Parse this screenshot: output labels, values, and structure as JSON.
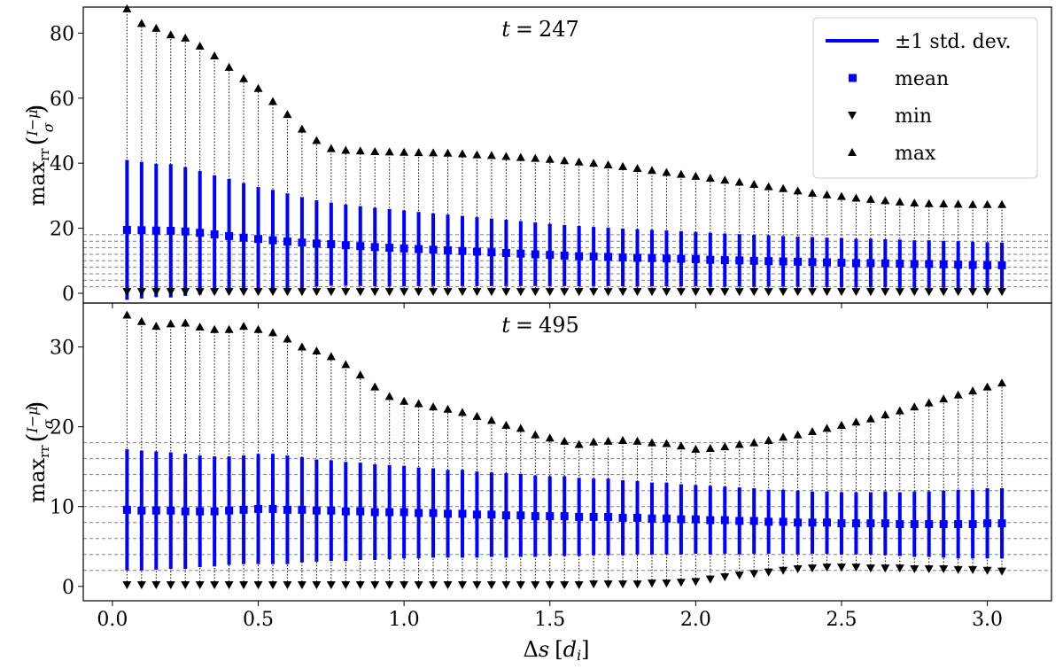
{
  "chart_data": [
    {
      "type": "errorbar",
      "panel": "top",
      "title": "t = 247",
      "title_var": "t",
      "title_value": "247",
      "xlabel": "Δs [d_i]",
      "ylabel": "max_rr((I−μ)/σ)",
      "xlim": [
        -0.1,
        3.22
      ],
      "ylim": [
        -3,
        88
      ],
      "xticks": [
        "0.0",
        "0.5",
        "1.0",
        "1.5",
        "2.0",
        "2.5",
        "3.0"
      ],
      "yticks": [
        "0",
        "20",
        "40",
        "60",
        "80"
      ],
      "hlines": [
        2,
        4,
        6,
        8,
        10,
        12,
        14,
        16,
        18
      ],
      "x": [
        0.05,
        0.1,
        0.15,
        0.2,
        0.25,
        0.3,
        0.35,
        0.4,
        0.45,
        0.5,
        0.55,
        0.6,
        0.65,
        0.7,
        0.75,
        0.8,
        0.85,
        0.9,
        0.95,
        1.0,
        1.05,
        1.1,
        1.15,
        1.2,
        1.25,
        1.3,
        1.35,
        1.4,
        1.45,
        1.5,
        1.55,
        1.6,
        1.65,
        1.7,
        1.75,
        1.8,
        1.85,
        1.9,
        1.95,
        2.0,
        2.05,
        2.1,
        2.15,
        2.2,
        2.25,
        2.3,
        2.35,
        2.4,
        2.45,
        2.5,
        2.55,
        2.6,
        2.65,
        2.7,
        2.75,
        2.8,
        2.85,
        2.9,
        2.95,
        3.0,
        3.05
      ],
      "mean": [
        19.5,
        19.4,
        19.3,
        19.2,
        19.0,
        18.6,
        18.1,
        17.6,
        17.1,
        16.7,
        16.3,
        15.9,
        15.6,
        15.3,
        15.1,
        14.8,
        14.5,
        14.2,
        14.0,
        13.8,
        13.6,
        13.4,
        13.2,
        13.0,
        12.8,
        12.6,
        12.4,
        12.2,
        12.0,
        11.8,
        11.6,
        11.4,
        11.3,
        11.2,
        11.0,
        10.9,
        10.8,
        10.7,
        10.6,
        10.5,
        10.3,
        10.2,
        10.1,
        10.0,
        9.9,
        9.8,
        9.7,
        9.6,
        9.5,
        9.4,
        9.3,
        9.3,
        9.2,
        9.1,
        9.0,
        9.0,
        8.9,
        8.8,
        8.7,
        8.6,
        8.6
      ],
      "std": [
        21.5,
        21.0,
        20.5,
        20.5,
        19.8,
        19.0,
        18.2,
        17.6,
        16.8,
        16.0,
        15.5,
        14.8,
        14.0,
        13.3,
        12.8,
        12.5,
        12.3,
        12.1,
        11.9,
        11.7,
        11.4,
        11.2,
        11.0,
        10.8,
        10.6,
        10.4,
        10.2,
        10.0,
        9.8,
        9.6,
        9.4,
        9.3,
        9.1,
        9.0,
        8.9,
        8.8,
        8.7,
        8.6,
        8.5,
        8.4,
        8.3,
        8.2,
        8.1,
        8.0,
        7.9,
        7.8,
        7.7,
        7.7,
        7.6,
        7.6,
        7.5,
        7.5,
        7.4,
        7.4,
        7.3,
        7.3,
        7.2,
        7.2,
        7.1,
        7.1,
        7.0
      ],
      "min": [
        0.5,
        0.5,
        0.5,
        0.5,
        0.5,
        0.5,
        0.5,
        0.5,
        0.5,
        0.5,
        0.5,
        0.5,
        0.5,
        0.5,
        0.5,
        0.5,
        0.5,
        0.5,
        0.5,
        0.5,
        0.5,
        0.5,
        0.5,
        0.5,
        0.5,
        0.5,
        0.5,
        0.5,
        0.5,
        0.5,
        0.5,
        0.5,
        0.5,
        0.5,
        0.5,
        0.5,
        0.5,
        0.5,
        0.5,
        0.5,
        0.5,
        0.5,
        0.5,
        0.5,
        0.5,
        0.5,
        0.5,
        0.5,
        0.5,
        0.5,
        0.5,
        0.5,
        0.5,
        0.5,
        0.5,
        0.5,
        0.5,
        0.5,
        0.5,
        0.5,
        0.5
      ],
      "max": [
        87.5,
        83.0,
        81.5,
        79.5,
        78.5,
        76.0,
        73.0,
        69.5,
        66.0,
        63.0,
        59.0,
        55.0,
        50.5,
        47.0,
        44.5,
        44.0,
        43.8,
        43.6,
        43.5,
        43.4,
        43.3,
        43.2,
        43.1,
        42.9,
        42.6,
        42.4,
        42.1,
        41.8,
        41.5,
        41.2,
        40.8,
        40.4,
        40.0,
        39.5,
        39.0,
        38.4,
        37.8,
        37.2,
        36.6,
        36.0,
        35.4,
        34.8,
        34.2,
        33.5,
        32.8,
        32.2,
        31.5,
        30.8,
        30.3,
        29.8,
        29.3,
        28.9,
        28.5,
        28.1,
        27.8,
        27.6,
        27.5,
        27.4,
        27.3,
        27.3,
        27.3
      ]
    },
    {
      "type": "errorbar",
      "panel": "bottom",
      "title": "t = 495",
      "title_var": "t",
      "title_value": "495",
      "xlabel": "Δs [d_i]",
      "ylabel": "max_rr((I−μ)/σ)",
      "xlim": [
        -0.1,
        3.22
      ],
      "ylim": [
        -1.8,
        35.5
      ],
      "xticks": [
        "0.0",
        "0.5",
        "1.0",
        "1.5",
        "2.0",
        "2.5",
        "3.0"
      ],
      "yticks": [
        "0",
        "10",
        "20",
        "30"
      ],
      "hlines": [
        2,
        4,
        6,
        8,
        10,
        12,
        14,
        16,
        18
      ],
      "x": [
        0.05,
        0.1,
        0.15,
        0.2,
        0.25,
        0.3,
        0.35,
        0.4,
        0.45,
        0.5,
        0.55,
        0.6,
        0.65,
        0.7,
        0.75,
        0.8,
        0.85,
        0.9,
        0.95,
        1.0,
        1.05,
        1.1,
        1.15,
        1.2,
        1.25,
        1.3,
        1.35,
        1.4,
        1.45,
        1.5,
        1.55,
        1.6,
        1.65,
        1.7,
        1.75,
        1.8,
        1.85,
        1.9,
        1.95,
        2.0,
        2.05,
        2.1,
        2.15,
        2.2,
        2.25,
        2.3,
        2.35,
        2.4,
        2.45,
        2.5,
        2.55,
        2.6,
        2.65,
        2.7,
        2.75,
        2.8,
        2.85,
        2.9,
        2.95,
        3.0,
        3.05
      ],
      "mean": [
        9.6,
        9.5,
        9.5,
        9.5,
        9.4,
        9.4,
        9.4,
        9.5,
        9.6,
        9.7,
        9.7,
        9.6,
        9.6,
        9.5,
        9.5,
        9.4,
        9.4,
        9.3,
        9.3,
        9.3,
        9.2,
        9.2,
        9.1,
        9.1,
        9.0,
        9.0,
        8.9,
        8.9,
        8.8,
        8.8,
        8.8,
        8.7,
        8.7,
        8.7,
        8.6,
        8.6,
        8.5,
        8.5,
        8.4,
        8.4,
        8.3,
        8.3,
        8.2,
        8.2,
        8.1,
        8.1,
        8.0,
        8.0,
        8.0,
        7.9,
        7.9,
        7.9,
        7.9,
        7.8,
        7.8,
        7.8,
        7.8,
        7.8,
        7.8,
        7.9,
        7.9
      ],
      "std": [
        7.6,
        7.5,
        7.4,
        7.3,
        7.2,
        7.0,
        6.9,
        6.8,
        6.8,
        6.9,
        6.9,
        6.8,
        6.6,
        6.4,
        6.3,
        6.2,
        6.1,
        6.0,
        5.9,
        5.8,
        5.7,
        5.6,
        5.5,
        5.5,
        5.4,
        5.3,
        5.3,
        5.2,
        5.1,
        5.0,
        5.0,
        4.9,
        4.8,
        4.8,
        4.7,
        4.6,
        4.5,
        4.5,
        4.4,
        4.3,
        4.3,
        4.2,
        4.2,
        4.1,
        4.0,
        4.0,
        4.0,
        3.9,
        3.9,
        3.9,
        3.9,
        3.9,
        4.0,
        4.0,
        4.1,
        4.1,
        4.2,
        4.3,
        4.3,
        4.4,
        4.4
      ],
      "min": [
        0.2,
        0.2,
        0.2,
        0.2,
        0.2,
        0.2,
        0.2,
        0.2,
        0.2,
        0.2,
        0.2,
        0.2,
        0.2,
        0.2,
        0.2,
        0.2,
        0.2,
        0.2,
        0.2,
        0.2,
        0.2,
        0.2,
        0.2,
        0.2,
        0.2,
        0.2,
        0.2,
        0.2,
        0.2,
        0.2,
        0.2,
        0.2,
        0.3,
        0.3,
        0.3,
        0.3,
        0.4,
        0.4,
        0.5,
        0.6,
        0.9,
        1.2,
        1.4,
        1.6,
        1.8,
        2.0,
        2.2,
        2.3,
        2.4,
        2.4,
        2.4,
        2.3,
        2.3,
        2.3,
        2.2,
        2.2,
        2.2,
        2.1,
        2.1,
        2.0,
        1.9
      ],
      "max": [
        34.0,
        33.2,
        32.6,
        32.9,
        33.0,
        32.5,
        32.2,
        32.2,
        32.6,
        32.2,
        31.8,
        31.0,
        30.0,
        29.5,
        28.8,
        27.8,
        26.5,
        25.0,
        23.8,
        23.2,
        22.9,
        22.5,
        22.2,
        21.8,
        21.3,
        20.8,
        20.2,
        19.8,
        19.0,
        18.6,
        18.2,
        17.8,
        18.1,
        18.2,
        18.3,
        18.2,
        18.0,
        17.9,
        17.6,
        17.2,
        17.3,
        17.5,
        17.8,
        18.0,
        18.3,
        18.7,
        19.0,
        19.4,
        19.8,
        20.2,
        20.6,
        21.0,
        21.5,
        22.0,
        22.5,
        23.0,
        23.5,
        24.0,
        24.5,
        25.0,
        25.5
      ]
    }
  ],
  "legend": {
    "items": [
      {
        "label": "±1 std. dev.",
        "marker": "line",
        "color": "#0000ff"
      },
      {
        "label": "mean",
        "marker": "square",
        "color": "#0000ff"
      },
      {
        "label": "min",
        "marker": "triangle-down",
        "color": "#000000"
      },
      {
        "label": "max",
        "marker": "triangle-up",
        "color": "#000000"
      }
    ]
  },
  "colors": {
    "bar": "#0000ff",
    "marker": "#000000",
    "hline": "#808080",
    "dotted": "#000000"
  }
}
